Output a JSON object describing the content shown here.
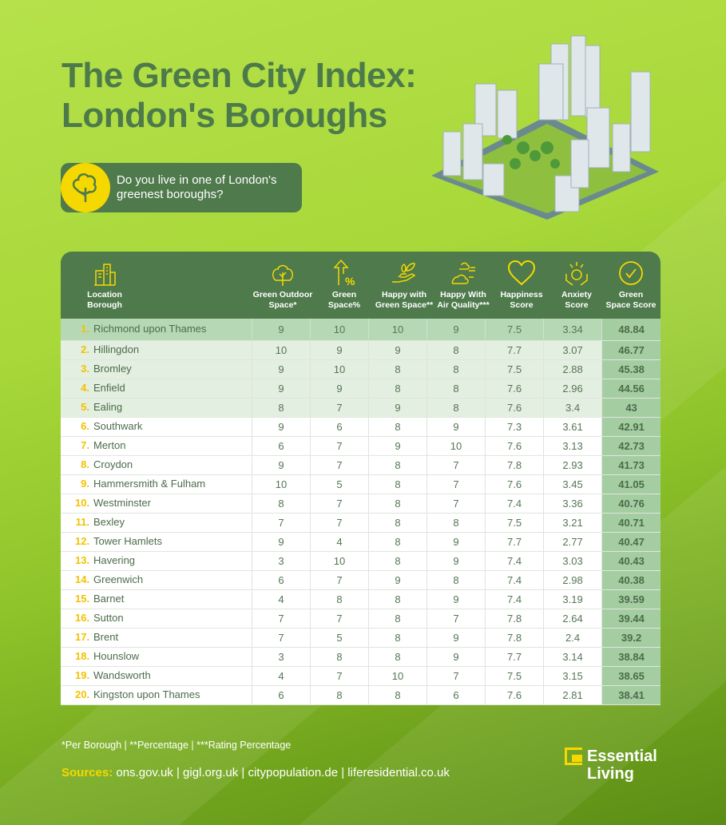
{
  "title_line1": "The Green City Index:",
  "title_line2": "London's Boroughs",
  "callout": {
    "icon": "tree-icon",
    "line1": "Do you live in one of London's",
    "line2": "greenest boroughs?"
  },
  "colors": {
    "accent": "#f5d800",
    "header": "#4e7a4c",
    "score_col": "#a5cda2",
    "title": "#4c7a4a"
  },
  "table": {
    "headers": [
      {
        "l1": "Location",
        "l2": "Borough",
        "icon": "buildings-icon"
      },
      {
        "l1": "Green Outdoor",
        "l2": "Space*",
        "icon": "tree-icon"
      },
      {
        "l1": "Green",
        "l2": "Space%",
        "icon": "arrow-up-percent-icon"
      },
      {
        "l1": "Happy with",
        "l2": "Green Space**",
        "icon": "hand-leaf-icon"
      },
      {
        "l1": "Happy With",
        "l2": "Air Quality***",
        "icon": "cloud-wind-icon"
      },
      {
        "l1": "Happiness",
        "l2": "Score",
        "icon": "heart-icon"
      },
      {
        "l1": "Anxiety",
        "l2": "Score",
        "icon": "anxiety-icon"
      },
      {
        "l1": "Green",
        "l2": "Space Score",
        "icon": "check-circle-icon"
      }
    ],
    "rows": [
      {
        "rank": "1.",
        "name": "Richmond upon Thames",
        "v": [
          "9",
          "10",
          "10",
          "9",
          "7.5",
          "3.34",
          "48.84"
        ]
      },
      {
        "rank": "2.",
        "name": "Hillingdon",
        "v": [
          "10",
          "9",
          "9",
          "8",
          "7.7",
          "3.07",
          "46.77"
        ]
      },
      {
        "rank": "3.",
        "name": "Bromley",
        "v": [
          "9",
          "10",
          "8",
          "8",
          "7.5",
          "2.88",
          "45.38"
        ]
      },
      {
        "rank": "4.",
        "name": "Enfield",
        "v": [
          "9",
          "9",
          "8",
          "8",
          "7.6",
          "2.96",
          "44.56"
        ]
      },
      {
        "rank": "5.",
        "name": "Ealing",
        "v": [
          "8",
          "7",
          "9",
          "8",
          "7.6",
          "3.4",
          "43"
        ]
      },
      {
        "rank": "6.",
        "name": "Southwark",
        "v": [
          "9",
          "6",
          "8",
          "9",
          "7.3",
          "3.61",
          "42.91"
        ]
      },
      {
        "rank": "7.",
        "name": "Merton",
        "v": [
          "6",
          "7",
          "9",
          "10",
          "7.6",
          "3.13",
          "42.73"
        ]
      },
      {
        "rank": "8.",
        "name": "Croydon",
        "v": [
          "9",
          "7",
          "8",
          "7",
          "7.8",
          "2.93",
          "41.73"
        ]
      },
      {
        "rank": "9.",
        "name": "Hammersmith & Fulham",
        "v": [
          "10",
          "5",
          "8",
          "7",
          "7.6",
          "3.45",
          "41.05"
        ]
      },
      {
        "rank": "10.",
        "name": "Westminster",
        "v": [
          "8",
          "7",
          "8",
          "7",
          "7.4",
          "3.36",
          "40.76"
        ]
      },
      {
        "rank": "11.",
        "name": "Bexley",
        "v": [
          "7",
          "7",
          "8",
          "8",
          "7.5",
          "3.21",
          "40.71"
        ]
      },
      {
        "rank": "12.",
        "name": "Tower Hamlets",
        "v": [
          "9",
          "4",
          "8",
          "9",
          "7.7",
          "2.77",
          "40.47"
        ]
      },
      {
        "rank": "13.",
        "name": "Havering",
        "v": [
          "3",
          "10",
          "8",
          "9",
          "7.4",
          "3.03",
          "40.43"
        ]
      },
      {
        "rank": "14.",
        "name": "Greenwich",
        "v": [
          "6",
          "7",
          "9",
          "8",
          "7.4",
          "2.98",
          "40.38"
        ]
      },
      {
        "rank": "15.",
        "name": "Barnet",
        "v": [
          "4",
          "8",
          "8",
          "9",
          "7.4",
          "3.19",
          "39.59"
        ]
      },
      {
        "rank": "16.",
        "name": "Sutton",
        "v": [
          "7",
          "7",
          "8",
          "7",
          "7.8",
          "2.64",
          "39.44"
        ]
      },
      {
        "rank": "17.",
        "name": "Brent",
        "v": [
          "7",
          "5",
          "8",
          "9",
          "7.8",
          "2.4",
          "39.2"
        ]
      },
      {
        "rank": "18.",
        "name": "Hounslow",
        "v": [
          "3",
          "8",
          "8",
          "9",
          "7.7",
          "3.14",
          "38.84"
        ]
      },
      {
        "rank": "19.",
        "name": "Wandsworth",
        "v": [
          "4",
          "7",
          "10",
          "7",
          "7.5",
          "3.15",
          "38.65"
        ]
      },
      {
        "rank": "20.",
        "name": "Kingston upon Thames",
        "v": [
          "6",
          "8",
          "8",
          "6",
          "7.6",
          "2.81",
          "38.41"
        ]
      }
    ]
  },
  "notes": "*Per Borough | **Percentage | ***Rating Percentage",
  "sources_label": "Sources:",
  "sources": "ons.gov.uk | gigl.org.uk | citypopulation.de | liferesidential.co.uk",
  "logo": {
    "line1": "Essential",
    "line2": "Living"
  }
}
